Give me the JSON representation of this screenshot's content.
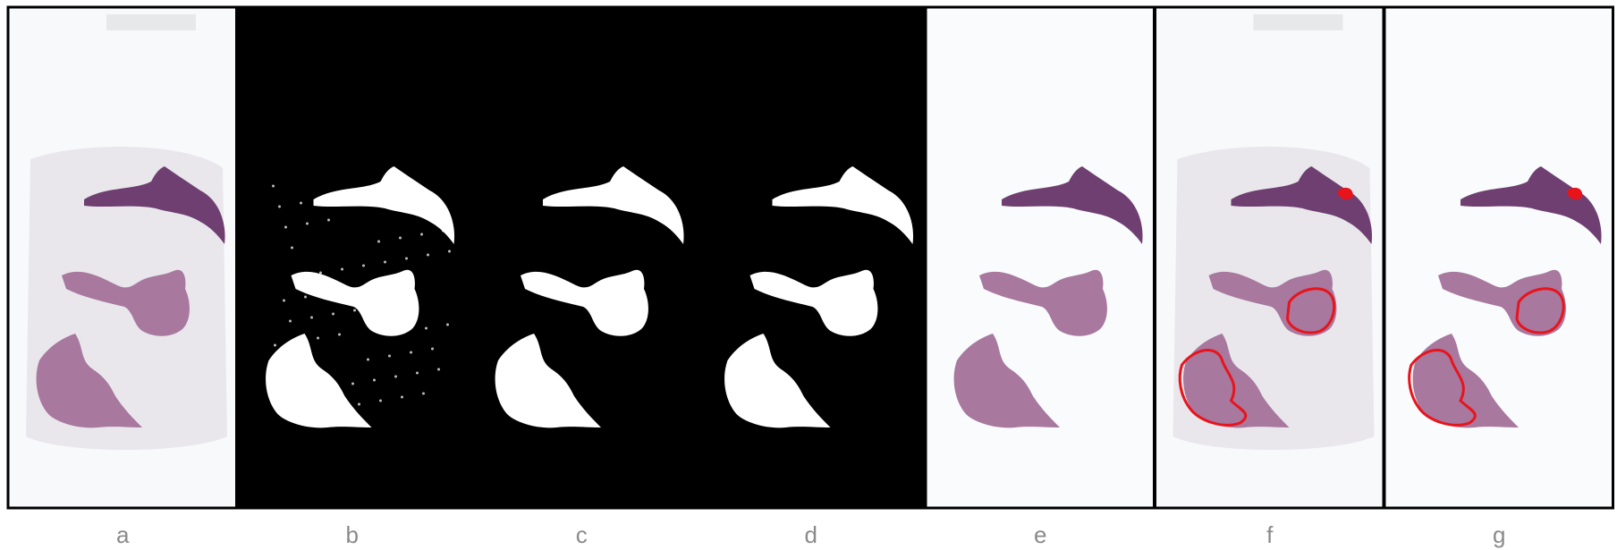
{
  "panels": [
    {
      "label": "a"
    },
    {
      "label": "b"
    },
    {
      "label": "c"
    },
    {
      "label": "d"
    },
    {
      "label": "e"
    },
    {
      "label": "f"
    },
    {
      "label": "g"
    }
  ]
}
